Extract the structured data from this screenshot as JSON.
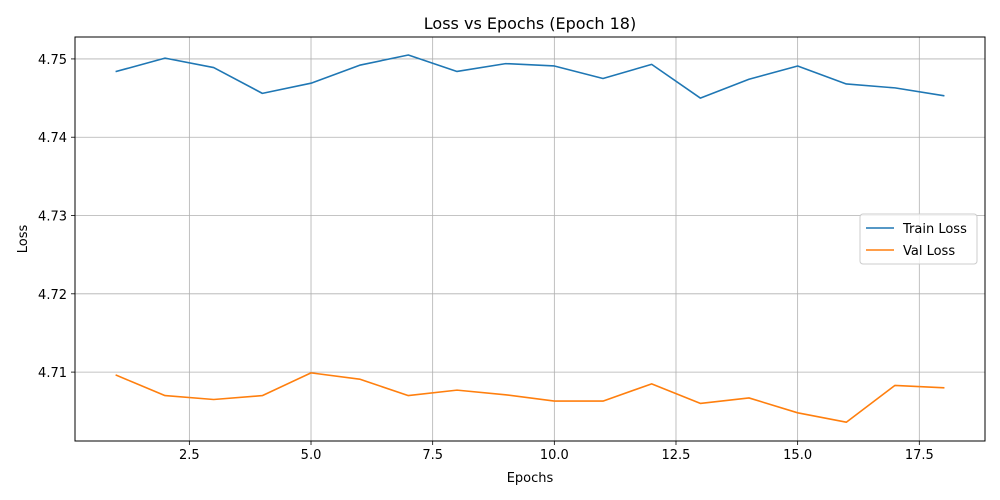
{
  "chart_data": {
    "type": "line",
    "title": "Loss vs Epochs (Epoch 18)",
    "xlabel": "Epochs",
    "ylabel": "Loss",
    "xlim": [
      0.15,
      18.85
    ],
    "ylim": [
      4.7012,
      4.7528
    ],
    "xticks": [
      2.5,
      5.0,
      7.5,
      10.0,
      12.5,
      15.0,
      17.5
    ],
    "xtick_labels": [
      "2.5",
      "5.0",
      "7.5",
      "10.0",
      "12.5",
      "15.0",
      "17.5"
    ],
    "yticks": [
      4.71,
      4.72,
      4.73,
      4.74,
      4.75
    ],
    "ytick_labels": [
      "4.71",
      "4.72",
      "4.73",
      "4.74",
      "4.75"
    ],
    "grid": true,
    "legend_position": "center-right",
    "x": [
      1,
      2,
      3,
      4,
      5,
      6,
      7,
      8,
      9,
      10,
      11,
      12,
      13,
      14,
      15,
      16,
      17,
      18
    ],
    "series": [
      {
        "name": "Train Loss",
        "color": "#1f77b4",
        "values": [
          4.7484,
          4.7501,
          4.7489,
          4.7456,
          4.7469,
          4.7492,
          4.7505,
          4.7484,
          4.7494,
          4.7491,
          4.7475,
          4.7493,
          4.745,
          4.7474,
          4.7491,
          4.7468,
          4.7463,
          4.7453
        ]
      },
      {
        "name": "Val Loss",
        "color": "#ff7f0e",
        "values": [
          4.7096,
          4.707,
          4.7065,
          4.707,
          4.7099,
          4.7091,
          4.707,
          4.7077,
          4.7071,
          4.7063,
          4.7063,
          4.7085,
          4.706,
          4.7067,
          4.7048,
          4.7036,
          4.7083,
          4.708
        ]
      }
    ]
  }
}
